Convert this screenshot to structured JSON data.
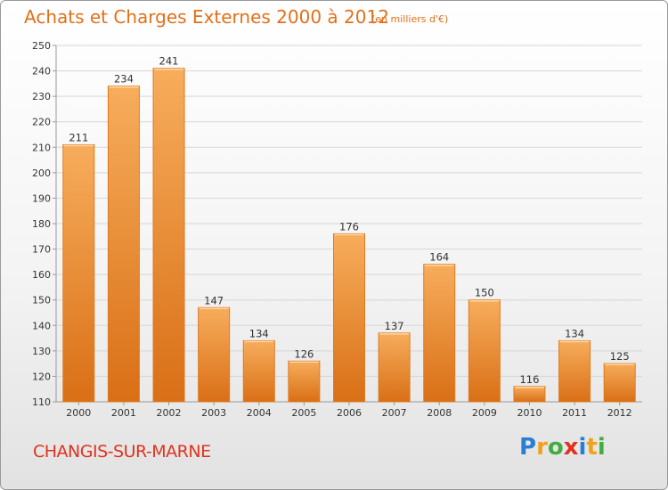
{
  "title": "Achats et Charges Externes 2000 à 2012",
  "subtitle": "(en milliers d'€)",
  "commune": "CHANGIS-SUR-MARNE",
  "logo": {
    "letters": [
      "P",
      "r",
      "o",
      "x",
      "i",
      "t",
      "i"
    ],
    "colors": [
      "#2a7fd4",
      "#f0a21a",
      "#3fae3f",
      "#e0321e",
      "#2a7fd4",
      "#f0a21a",
      "#3fae3f"
    ]
  },
  "colors": {
    "bar": "#f0922f",
    "bar_light": "#f7ad5c",
    "bar_dark": "#d96f16",
    "title": "#e2701a",
    "commune": "#e0321e"
  },
  "chart_data": {
    "type": "bar",
    "categories": [
      "2000",
      "2001",
      "2002",
      "2003",
      "2004",
      "2005",
      "2006",
      "2007",
      "2008",
      "2009",
      "2010",
      "2011",
      "2012"
    ],
    "values": [
      211,
      234,
      241,
      147,
      134,
      126,
      176,
      137,
      164,
      150,
      116,
      134,
      125
    ],
    "ylim": [
      110,
      250
    ],
    "yticks": [
      110,
      120,
      130,
      140,
      150,
      160,
      170,
      180,
      190,
      200,
      210,
      220,
      230,
      240,
      250
    ],
    "grid": true,
    "data_labels": true
  }
}
